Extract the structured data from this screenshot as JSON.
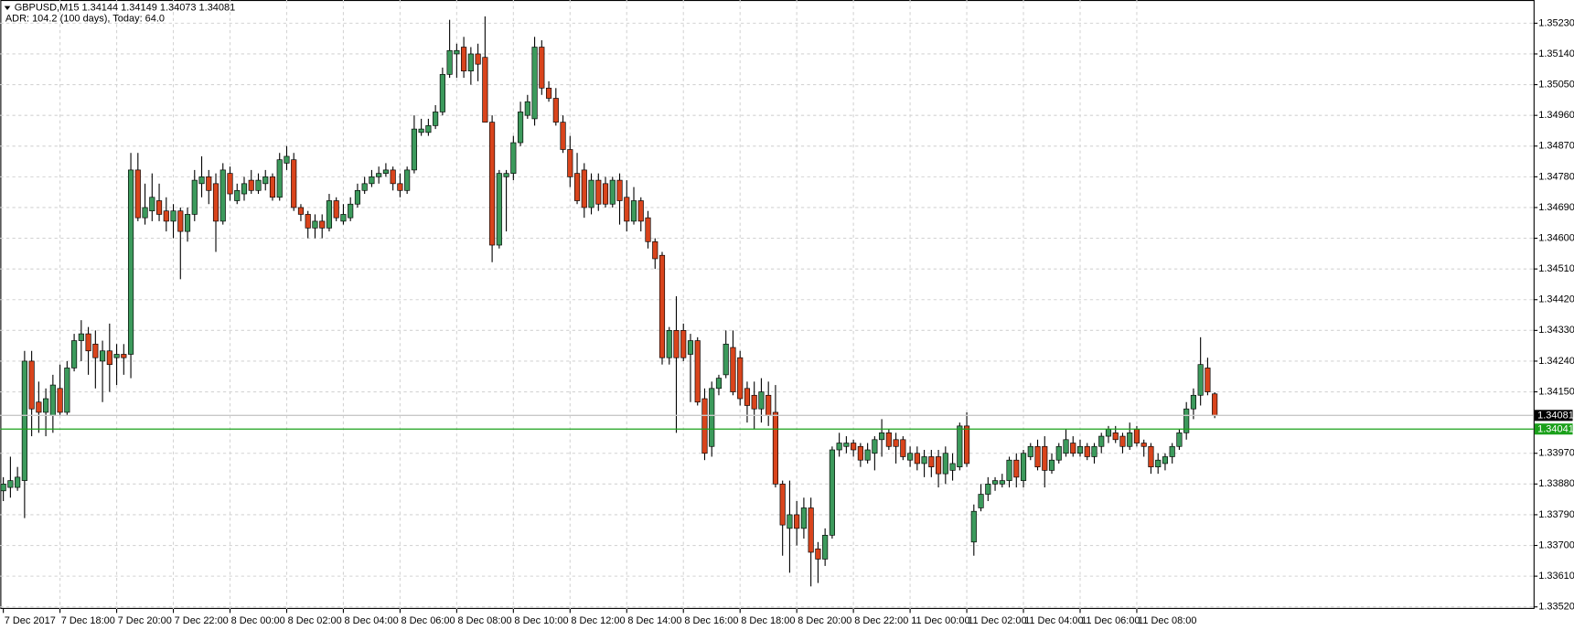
{
  "chart_data": {
    "type": "candlestick",
    "title": "GBPUSD,M15  1.34144 1.34149 1.34073 1.34081",
    "subtitle": "ADR: 104.2 (100 days), Today: 64.0",
    "up_color": "#3c9a5c",
    "down_color": "#d9441c",
    "grid": true,
    "ylim": [
      1.33514,
      1.35298
    ],
    "yticks": [
      {
        "value": 1.3523,
        "label": "1.35230"
      },
      {
        "value": 1.3514,
        "label": "1.35140"
      },
      {
        "value": 1.3505,
        "label": "1.35050"
      },
      {
        "value": 1.3496,
        "label": "1.34960"
      },
      {
        "value": 1.3487,
        "label": "1.34870"
      },
      {
        "value": 1.3478,
        "label": "1.34780"
      },
      {
        "value": 1.3469,
        "label": "1.34690"
      },
      {
        "value": 1.346,
        "label": "1.34600"
      },
      {
        "value": 1.3451,
        "label": "1.34510"
      },
      {
        "value": 1.3442,
        "label": "1.34420"
      },
      {
        "value": 1.3433,
        "label": "1.34330"
      },
      {
        "value": 1.3424,
        "label": "1.34240"
      },
      {
        "value": 1.3415,
        "label": "1.34150"
      },
      {
        "value": 1.3397,
        "label": "1.33970"
      },
      {
        "value": 1.3388,
        "label": "1.33880"
      },
      {
        "value": 1.3379,
        "label": "1.33790"
      },
      {
        "value": 1.337,
        "label": "1.33700"
      },
      {
        "value": 1.3361,
        "label": "1.33610"
      },
      {
        "value": 1.3352,
        "label": "1.33520"
      }
    ],
    "price_lines": [
      {
        "value": 1.34081,
        "label": "1.34081",
        "color": "#c8c8c8",
        "box_color": "#000000"
      },
      {
        "value": 1.34041,
        "label": "1.34041",
        "color": "#1aa01a",
        "box_color": "#1aa01a"
      }
    ],
    "categories": [
      "7 Dec 2017",
      null,
      null,
      null,
      null,
      null,
      null,
      null,
      "7 Dec 18:00",
      null,
      null,
      null,
      null,
      null,
      null,
      null,
      "7 Dec 20:00",
      null,
      null,
      null,
      null,
      null,
      null,
      null,
      "7 Dec 22:00",
      null,
      null,
      null,
      null,
      null,
      null,
      null,
      "8 Dec 00:00",
      null,
      null,
      null,
      null,
      null,
      null,
      null,
      "8 Dec 02:00",
      null,
      null,
      null,
      null,
      null,
      null,
      null,
      "8 Dec 04:00",
      null,
      null,
      null,
      null,
      null,
      null,
      null,
      "8 Dec 06:00",
      null,
      null,
      null,
      null,
      null,
      null,
      null,
      "8 Dec 08:00",
      null,
      null,
      null,
      null,
      null,
      null,
      null,
      "8 Dec 10:00",
      null,
      null,
      null,
      null,
      null,
      null,
      null,
      "8 Dec 12:00",
      null,
      null,
      null,
      null,
      null,
      null,
      null,
      "8 Dec 14:00",
      null,
      null,
      null,
      null,
      null,
      null,
      null,
      "8 Dec 16:00",
      null,
      null,
      null,
      null,
      null,
      null,
      null,
      "8 Dec 18:00",
      null,
      null,
      null,
      null,
      null,
      null,
      null,
      "8 Dec 20:00",
      null,
      null,
      null,
      null,
      null,
      null,
      null,
      "8 Dec 22:00",
      null,
      null,
      null,
      null,
      null,
      null,
      null,
      "11 Dec 00:00",
      null,
      null,
      null,
      null,
      null,
      null,
      null,
      "11 Dec 02:00",
      null,
      null,
      null,
      null,
      null,
      null,
      null,
      "11 Dec 04:00",
      null,
      null,
      null,
      null,
      null,
      null,
      null,
      "11 Dec 06:00",
      null,
      null,
      null,
      null,
      null,
      null,
      null,
      "11 Dec 08:00",
      null,
      null,
      null,
      null,
      null,
      null,
      null,
      null,
      null,
      null,
      null
    ],
    "open": [
      1.3386,
      1.3387,
      1.3387,
      1.3389,
      1.3424,
      1.3412,
      1.3409,
      1.3408,
      1.3416,
      1.3409,
      1.3422,
      1.343,
      1.3432,
      1.3429,
      1.3424,
      1.3427,
      1.3425,
      1.3426,
      1.3426,
      1.348,
      1.3466,
      1.3468,
      1.3471,
      1.3468,
      1.3465,
      1.3468,
      1.3462,
      1.3467,
      1.3476,
      1.3478,
      1.3476,
      1.3465,
      1.3479,
      1.3471,
      1.3473,
      1.3477,
      1.3474,
      1.3476,
      1.3478,
      1.3472,
      1.3482,
      1.3483,
      1.3469,
      1.3467,
      1.3463,
      1.3465,
      1.3463,
      1.3471,
      1.3465,
      1.3466,
      1.347,
      1.3474,
      1.3476,
      1.3478,
      1.3479,
      1.348,
      1.3476,
      1.3474,
      1.348,
      1.3491,
      1.3491,
      1.3493,
      1.3497,
      1.3508,
      1.3514,
      1.3516,
      1.3509,
      1.3514,
      1.3513,
      1.3494,
      1.3458,
      1.3478,
      1.3479,
      1.3488,
      1.3496,
      1.3495,
      1.3516,
      1.3504,
      1.3501,
      1.3494,
      1.3486,
      1.3479,
      1.348,
      1.3469,
      1.3477,
      1.3476,
      1.347,
      1.3477,
      1.3472,
      1.3465,
      1.3471,
      1.3466,
      1.3459,
      1.3455,
      1.3425,
      1.3433,
      1.3433,
      1.3426,
      1.343,
      1.3413,
      1.3399,
      1.3416,
      1.342,
      1.3428,
      1.3425,
      1.3416,
      1.3414,
      1.341,
      1.3414,
      1.3409,
      1.3388,
      1.3375,
      1.3379,
      1.3375,
      1.3381,
      1.3369,
      1.3366,
      1.3373,
      1.3398,
      1.3399,
      1.34,
      1.3399,
      1.3395,
      1.3397,
      1.3401,
      1.3403,
      1.3401,
      1.3401,
      1.3395,
      1.3397,
      1.3394,
      1.3396,
      1.3396,
      1.3391,
      1.3392,
      1.3393,
      1.3405,
      1.3371,
      1.3381,
      1.3385,
      1.3388,
      1.3388,
      1.3389,
      1.3395,
      1.3389,
      1.3396,
      1.3399,
      1.3399,
      1.3392,
      1.3395,
      1.3397,
      1.34,
      1.3397,
      1.3399,
      1.3396,
      1.3399,
      1.3402,
      1.3403,
      1.3402,
      1.3399,
      1.3404,
      1.34,
      1.3399,
      1.3393,
      1.3394,
      1.3396,
      1.3399,
      1.3403,
      1.341,
      1.3414,
      1.3422,
      1.34144
    ],
    "high": [
      1.339,
      1.3396,
      1.3393,
      1.3427,
      1.3427,
      1.3418,
      1.3416,
      1.342,
      1.3423,
      1.3424,
      1.3432,
      1.3436,
      1.3434,
      1.3433,
      1.343,
      1.3435,
      1.3429,
      1.3429,
      1.3485,
      1.3485,
      1.3476,
      1.3479,
      1.3476,
      1.3472,
      1.347,
      1.3469,
      1.3469,
      1.348,
      1.3484,
      1.348,
      1.3479,
      1.3482,
      1.3481,
      1.3476,
      1.3478,
      1.348,
      1.3479,
      1.348,
      1.3479,
      1.3485,
      1.3487,
      1.3485,
      1.347,
      1.3468,
      1.3467,
      1.3467,
      1.3473,
      1.3472,
      1.347,
      1.3472,
      1.3476,
      1.3478,
      1.348,
      1.3481,
      1.3482,
      1.3481,
      1.3479,
      1.3481,
      1.3496,
      1.3495,
      1.3495,
      1.3499,
      1.351,
      1.3524,
      1.3517,
      1.3519,
      1.3516,
      1.3517,
      1.3525,
      1.3496,
      1.348,
      1.348,
      1.349,
      1.35,
      1.3502,
      1.3519,
      1.3518,
      1.3506,
      1.3504,
      1.3496,
      1.349,
      1.3485,
      1.3482,
      1.3479,
      1.3479,
      1.3478,
      1.3478,
      1.3479,
      1.3477,
      1.3475,
      1.3472,
      1.3468,
      1.346,
      1.3456,
      1.3434,
      1.3443,
      1.3435,
      1.3432,
      1.3431,
      1.3416,
      1.3418,
      1.342,
      1.3433,
      1.3433,
      1.3427,
      1.3418,
      1.3418,
      1.3419,
      1.3418,
      1.3417,
      1.3389,
      1.3389,
      1.3383,
      1.3384,
      1.3384,
      1.3371,
      1.3375,
      1.3399,
      1.3403,
      1.3402,
      1.3401,
      1.34,
      1.34,
      1.3402,
      1.3407,
      1.3404,
      1.3403,
      1.3402,
      1.3399,
      1.3399,
      1.3398,
      1.3398,
      1.3398,
      1.3399,
      1.3397,
      1.3406,
      1.3409,
      1.3382,
      1.3388,
      1.339,
      1.339,
      1.3391,
      1.3396,
      1.3397,
      1.3398,
      1.34,
      1.3401,
      1.3402,
      1.3397,
      1.34,
      1.3404,
      1.3402,
      1.3401,
      1.34,
      1.34,
      1.3403,
      1.3405,
      1.3405,
      1.3403,
      1.3406,
      1.3405,
      1.3401,
      1.34,
      1.3397,
      1.3397,
      1.34,
      1.3404,
      1.3412,
      1.3416,
      1.3431,
      1.3425,
      1.34149
    ],
    "low": [
      1.3383,
      1.3384,
      1.3386,
      1.3378,
      1.3402,
      1.3403,
      1.3402,
      1.3403,
      1.3408,
      1.3408,
      1.3421,
      1.3424,
      1.342,
      1.3416,
      1.3412,
      1.3415,
      1.3417,
      1.342,
      1.3419,
      1.3465,
      1.3464,
      1.3465,
      1.3465,
      1.3462,
      1.346,
      1.3448,
      1.3459,
      1.3465,
      1.3472,
      1.347,
      1.3456,
      1.3464,
      1.3471,
      1.347,
      1.3471,
      1.3473,
      1.3473,
      1.3474,
      1.3471,
      1.3471,
      1.348,
      1.3468,
      1.3465,
      1.346,
      1.346,
      1.346,
      1.3462,
      1.3465,
      1.3464,
      1.3465,
      1.3469,
      1.3473,
      1.3475,
      1.3476,
      1.3478,
      1.3474,
      1.3472,
      1.3473,
      1.3479,
      1.349,
      1.349,
      1.3492,
      1.3496,
      1.3507,
      1.3507,
      1.3507,
      1.3505,
      1.3506,
      1.3494,
      1.3453,
      1.3457,
      1.3462,
      1.3477,
      1.3487,
      1.3495,
      1.3493,
      1.3502,
      1.35,
      1.3493,
      1.3485,
      1.3475,
      1.347,
      1.3466,
      1.3467,
      1.3468,
      1.3469,
      1.3469,
      1.3464,
      1.3462,
      1.3464,
      1.3462,
      1.3457,
      1.3451,
      1.3423,
      1.3423,
      1.3403,
      1.3424,
      1.3412,
      1.3411,
      1.3395,
      1.3396,
      1.3414,
      1.3419,
      1.3414,
      1.3411,
      1.3406,
      1.3404,
      1.3406,
      1.3405,
      1.3387,
      1.3367,
      1.3362,
      1.337,
      1.3372,
      1.3358,
      1.3359,
      1.3364,
      1.3372,
      1.3396,
      1.3397,
      1.3396,
      1.3393,
      1.3394,
      1.3392,
      1.3396,
      1.3398,
      1.3394,
      1.3395,
      1.3393,
      1.3392,
      1.339,
      1.339,
      1.3387,
      1.3388,
      1.3389,
      1.3392,
      1.3393,
      1.3367,
      1.338,
      1.3383,
      1.3386,
      1.3387,
      1.3387,
      1.3387,
      1.3387,
      1.3395,
      1.3392,
      1.3387,
      1.3391,
      1.3394,
      1.3396,
      1.3396,
      1.3396,
      1.3395,
      1.3394,
      1.3397,
      1.34,
      1.34,
      1.3397,
      1.3398,
      1.3399,
      1.3396,
      1.3391,
      1.3391,
      1.3392,
      1.3394,
      1.3398,
      1.3401,
      1.3407,
      1.3411,
      1.3414,
      1.34073
    ],
    "close": [
      1.3388,
      1.3389,
      1.339,
      1.3424,
      1.341,
      1.3409,
      1.3413,
      1.3417,
      1.3409,
      1.3422,
      1.343,
      1.3432,
      1.3427,
      1.3425,
      1.3427,
      1.3423,
      1.3426,
      1.3425,
      1.348,
      1.3466,
      1.3469,
      1.3472,
      1.3467,
      1.3465,
      1.3468,
      1.3462,
      1.3467,
      1.3477,
      1.3478,
      1.3474,
      1.3465,
      1.348,
      1.3473,
      1.3474,
      1.3476,
      1.3474,
      1.3477,
      1.3478,
      1.3472,
      1.3483,
      1.3484,
      1.3469,
      1.3467,
      1.3463,
      1.3465,
      1.3463,
      1.3471,
      1.3466,
      1.3467,
      1.347,
      1.3474,
      1.3476,
      1.3478,
      1.3479,
      1.348,
      1.3476,
      1.3474,
      1.348,
      1.3492,
      1.3492,
      1.3493,
      1.3497,
      1.3508,
      1.3515,
      1.3515,
      1.3509,
      1.3514,
      1.3511,
      1.3494,
      1.3458,
      1.3479,
      1.3479,
      1.3488,
      1.3497,
      1.35,
      1.3516,
      1.3504,
      1.3501,
      1.3494,
      1.3486,
      1.3478,
      1.3471,
      1.3469,
      1.3477,
      1.347,
      1.347,
      1.3477,
      1.3471,
      1.3465,
      1.3471,
      1.3465,
      1.3459,
      1.3454,
      1.3425,
      1.3433,
      1.3425,
      1.3425,
      1.343,
      1.3412,
      1.3397,
      1.3416,
      1.3419,
      1.3429,
      1.3415,
      1.3413,
      1.3411,
      1.341,
      1.3415,
      1.3408,
      1.3388,
      1.3376,
      1.3379,
      1.3375,
      1.3381,
      1.3368,
      1.3366,
      1.3373,
      1.3398,
      1.34,
      1.34,
      1.3398,
      1.3395,
      1.3398,
      1.3401,
      1.3403,
      1.3399,
      1.3399,
      1.3396,
      1.3397,
      1.3394,
      1.3396,
      1.3393,
      1.3391,
      1.3397,
      1.3394,
      1.3405,
      1.3394,
      1.338,
      1.3385,
      1.3388,
      1.3389,
      1.3389,
      1.3395,
      1.339,
      1.3397,
      1.3399,
      1.3393,
      1.3392,
      1.3395,
      1.3399,
      1.3401,
      1.3397,
      1.3399,
      1.3396,
      1.3399,
      1.3402,
      1.3404,
      1.3401,
      1.3399,
      1.3403,
      1.34,
      1.3399,
      1.3393,
      1.3395,
      1.3396,
      1.3399,
      1.3403,
      1.341,
      1.3414,
      1.3423,
      1.3415,
      1.34081
    ]
  }
}
